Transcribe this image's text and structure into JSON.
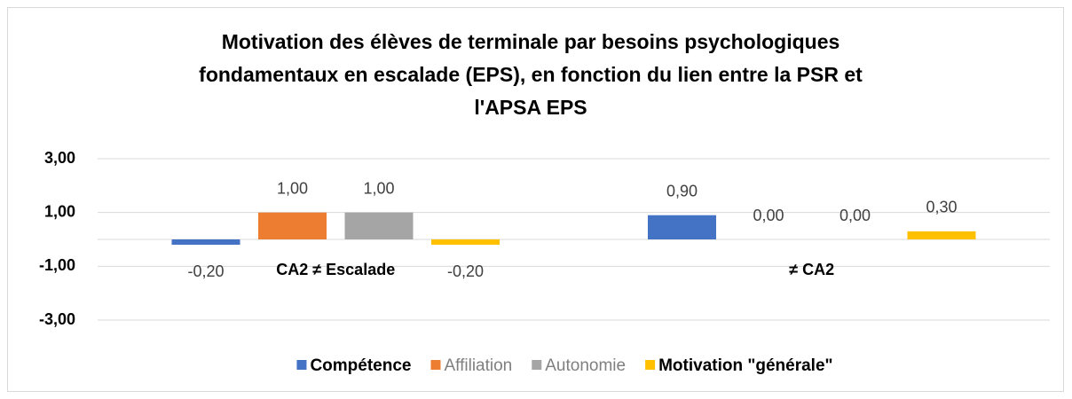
{
  "chart_data": {
    "type": "bar",
    "title": [
      "Motivation des élèves de terminale par besoins psychologiques",
      "fondamentaux en escalade (EPS), en fonction du lien entre la PSR et",
      "l'APSA EPS"
    ],
    "categories": [
      "CA2 ≠ Escalade",
      "≠ CA2"
    ],
    "series": [
      {
        "name": "Compétence",
        "color": "#4472c4",
        "values": [
          -0.2,
          0.9
        ],
        "value_labels": [
          "-0,20",
          "0,90"
        ]
      },
      {
        "name": "Affiliation",
        "color": "#ed7d31",
        "values": [
          1,
          0
        ],
        "value_labels": [
          "1,00",
          "0,00"
        ]
      },
      {
        "name": "Autonomie",
        "color": "#a5a5a5",
        "values": [
          1,
          0
        ],
        "value_labels": [
          "1,00",
          "0,00"
        ]
      },
      {
        "name": "Motivation \"générale\"",
        "color": "#ffc000",
        "values": [
          -0.2,
          0.3
        ],
        "value_labels": [
          "-0,20",
          "0,30"
        ]
      }
    ],
    "ylim": [
      -3,
      3
    ],
    "yticks": [
      {
        "value": -3,
        "label": "-3,00"
      },
      {
        "value": -1,
        "label": "-1,00"
      },
      {
        "value": 1,
        "label": "1,00"
      },
      {
        "value": 3,
        "label": "3,00"
      }
    ],
    "grid": true,
    "legend": "bottom"
  }
}
